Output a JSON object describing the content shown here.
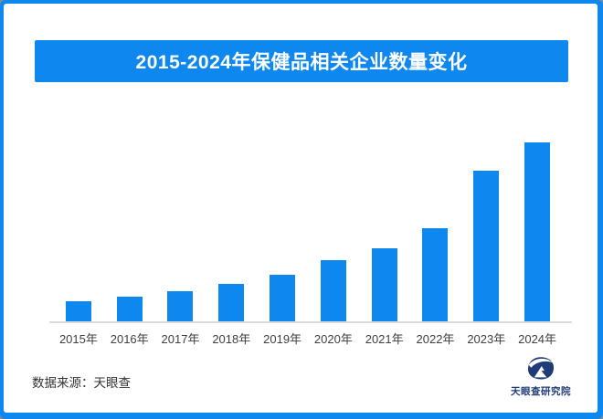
{
  "frame": {
    "border_color": "#0E87EF",
    "background": "#FFFFFF"
  },
  "header": {
    "title": "2015-2024年保健品相关企业数量变化",
    "banner_color": "#0E87EF",
    "title_color": "#FFFFFF"
  },
  "chart_data": {
    "type": "bar",
    "title": "2015-2024年保健品相关企业数量变化",
    "categories": [
      "2015年",
      "2016年",
      "2017年",
      "2018年",
      "2019年",
      "2020年",
      "2021年",
      "2022年",
      "2023年",
      "2024年"
    ],
    "values": [
      11,
      14,
      17,
      21,
      26,
      34,
      41,
      52,
      84,
      100
    ],
    "value_scale": "relative units, tallest bar (2024) = 100; chart shows no y-axis, gridlines or data labels",
    "bar_color": "#0E87EF",
    "xlabel": "",
    "ylabel": "",
    "legend": "none",
    "gridlines": false,
    "baseline_color": "#DBDBDB",
    "tick_label_color": "#3F3F3F"
  },
  "footer": {
    "source": "数据来源：天眼查",
    "logo_text": "天眼查研究院",
    "logo_color": "#1E3C78"
  }
}
